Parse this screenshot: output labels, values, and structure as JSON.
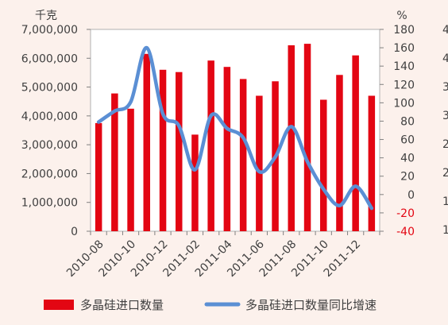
{
  "chart_data": {
    "type": "bar+line",
    "y_left_unit": "千克",
    "y_right_unit": "%",
    "y_left_ticks": [
      "0",
      "1,000,000",
      "2,000,000",
      "3,000,000",
      "4,000,000",
      "5,000,000",
      "6,000,000",
      "7,000,000"
    ],
    "y_left_range": [
      0,
      7000000
    ],
    "y_right_ticks": [
      "-40",
      "-20",
      "0",
      "20",
      "40",
      "60",
      "80",
      "100",
      "120",
      "140",
      "160",
      "180"
    ],
    "y_right_range": [
      -40,
      180
    ],
    "x_tick_labels": [
      "2010-08",
      "2010-10",
      "2010-12",
      "2011-02",
      "2011-04",
      "2011-06",
      "2011-08",
      "2011-10",
      "2011-12"
    ],
    "months": [
      "2010-08",
      "2010-09",
      "2010-10",
      "2010-11",
      "2010-12",
      "2011-01",
      "2011-02",
      "2011-03",
      "2011-04",
      "2011-05",
      "2011-06",
      "2011-07",
      "2011-08",
      "2011-09",
      "2011-10",
      "2011-11",
      "2011-12",
      "2012-01"
    ],
    "series": [
      {
        "name": "多晶硅进口数量",
        "kind": "bar",
        "axis": "left",
        "color": "#e30613",
        "values": [
          3750000,
          4780000,
          4250000,
          6150000,
          5600000,
          5520000,
          3350000,
          5920000,
          5700000,
          5280000,
          4700000,
          5200000,
          6450000,
          6500000,
          4560000,
          5420000,
          6100000,
          4700000
        ]
      },
      {
        "name": "多晶硅进口数量同比增速",
        "kind": "line",
        "axis": "right",
        "color": "#5b8fd4",
        "values": [
          79,
          91,
          101,
          160,
          88,
          75,
          27,
          86,
          72,
          62,
          25,
          41,
          74,
          36,
          6,
          -12,
          9,
          -15
        ]
      }
    ],
    "cut_off_right_axis_ticks": [
      "4",
      "4",
      "3",
      "3",
      "2",
      "2",
      "1",
      "1"
    ],
    "grid": false,
    "legend_position": "bottom"
  },
  "colors": {
    "background": "#fcf1ec",
    "plot_background": "#ffffff",
    "bar": "#e30613",
    "line": "#5b8fd4",
    "negative_tick": "#e30613",
    "axis_text": "#404040"
  }
}
